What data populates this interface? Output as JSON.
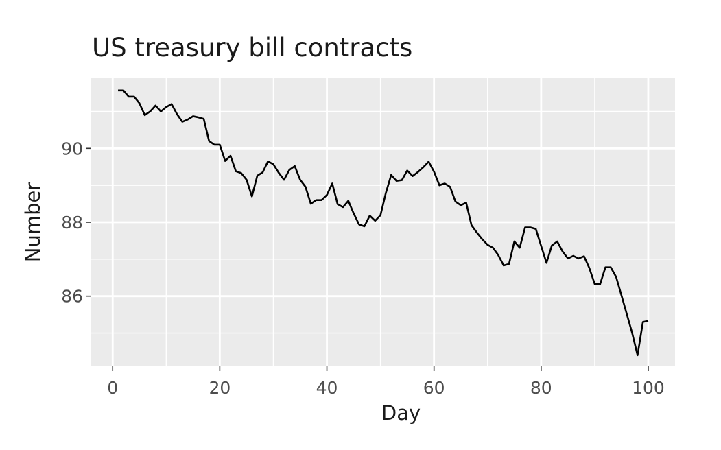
{
  "chart_data": {
    "type": "line",
    "title": "US treasury bill contracts",
    "xlabel": "Day",
    "ylabel": "Number",
    "xlim": [
      -4,
      105
    ],
    "ylim": [
      84.1,
      91.9
    ],
    "x_ticks": [
      0,
      20,
      40,
      60,
      80,
      100
    ],
    "x_tick_labels": [
      "0",
      "20",
      "40",
      "60",
      "80",
      "100"
    ],
    "y_ticks": [
      86,
      88,
      90
    ],
    "y_tick_labels": [
      "86",
      "88",
      "90"
    ],
    "grid": true,
    "colors": {
      "panel": "#ebebeb",
      "grid": "#ffffff",
      "line": "#000000",
      "tick_text": "#4d4d4d"
    },
    "series": [
      {
        "x": [
          1,
          2,
          3,
          4,
          5,
          6,
          7,
          8,
          9,
          10,
          11,
          12,
          13,
          14,
          15,
          16,
          17,
          18,
          19,
          20,
          21,
          22,
          23,
          24,
          25,
          26,
          27,
          28,
          29,
          30,
          31,
          32,
          33,
          34,
          35,
          36,
          37,
          38,
          39,
          40,
          41,
          42,
          43,
          44,
          45,
          46,
          47,
          48,
          49,
          50,
          51,
          52,
          53,
          54,
          55,
          56,
          57,
          58,
          59,
          60,
          61,
          62,
          63,
          64,
          65,
          66,
          67,
          68,
          69,
          70,
          71,
          72,
          73,
          74,
          75,
          76,
          77,
          78,
          79,
          80,
          81,
          82,
          83,
          84,
          85,
          86,
          87,
          88,
          89,
          90,
          91,
          92,
          93,
          94,
          95,
          96,
          97,
          98,
          99,
          100
        ],
        "values": [
          91.57,
          91.57,
          91.4,
          91.4,
          91.22,
          90.9,
          91.0,
          91.16,
          91.0,
          91.12,
          91.2,
          90.93,
          90.72,
          90.78,
          90.87,
          90.84,
          90.8,
          90.2,
          90.1,
          90.1,
          89.66,
          89.8,
          89.38,
          89.33,
          89.15,
          88.7,
          89.26,
          89.35,
          89.65,
          89.57,
          89.34,
          89.15,
          89.42,
          89.52,
          89.15,
          88.96,
          88.5,
          88.6,
          88.6,
          88.74,
          89.05,
          88.49,
          88.41,
          88.58,
          88.24,
          87.94,
          87.89,
          88.18,
          88.04,
          88.19,
          88.79,
          89.28,
          89.12,
          89.14,
          89.4,
          89.25,
          89.36,
          89.49,
          89.64,
          89.37,
          89.0,
          89.05,
          88.96,
          88.56,
          88.46,
          88.53,
          87.92,
          87.72,
          87.54,
          87.39,
          87.31,
          87.11,
          86.83,
          86.87,
          87.48,
          87.31,
          87.86,
          87.86,
          87.82,
          87.36,
          86.9,
          87.37,
          87.48,
          87.21,
          87.02,
          87.09,
          87.02,
          87.08,
          86.76,
          86.33,
          86.32,
          86.78,
          86.78,
          86.52,
          86.02,
          85.51,
          85.0,
          84.4,
          85.3,
          85.33
        ]
      }
    ]
  }
}
